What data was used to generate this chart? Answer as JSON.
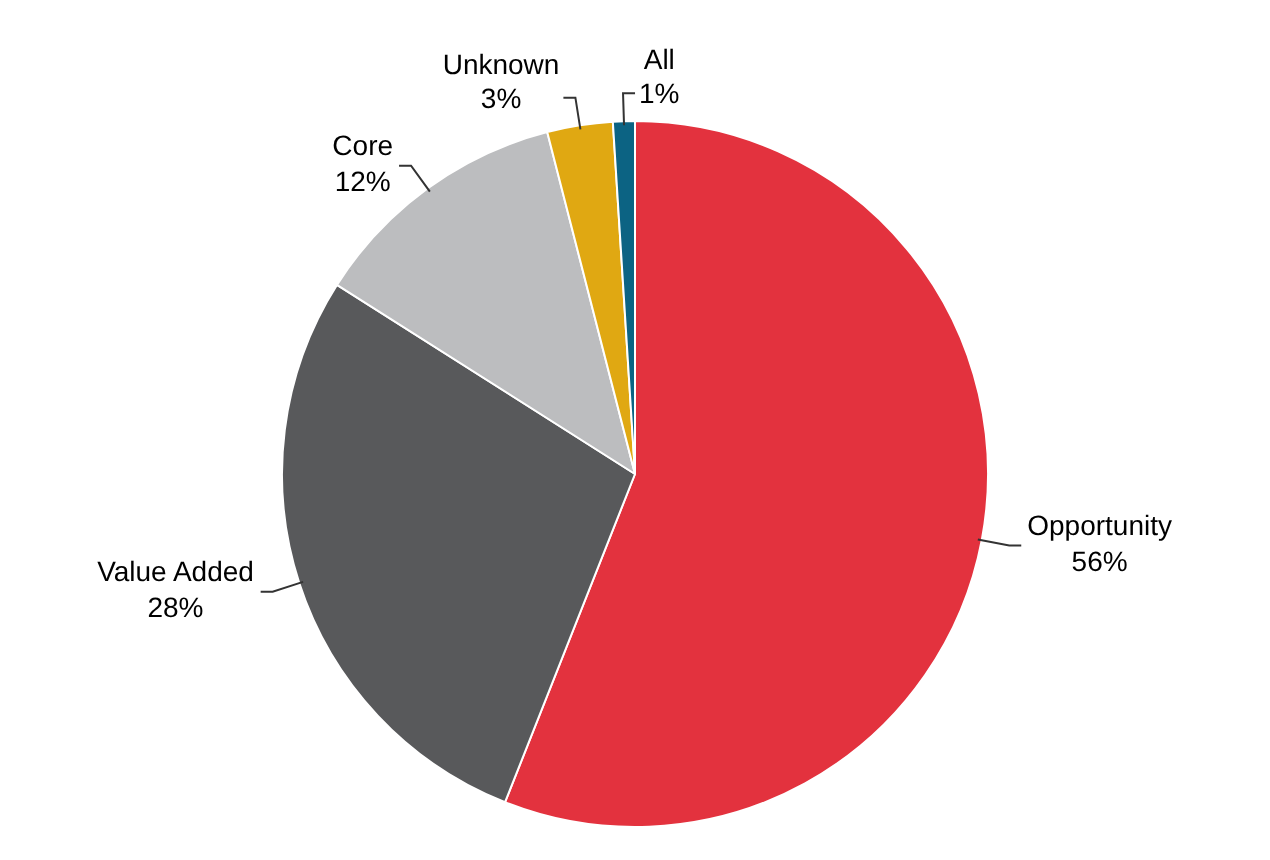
{
  "chart_data": {
    "type": "pie",
    "categories": [
      "Opportunity",
      "Value Added",
      "Core",
      "Unknown",
      "All"
    ],
    "values": [
      56,
      28,
      12,
      3,
      1
    ],
    "colors": [
      "#e3323e",
      "#58595b",
      "#bcbdbf",
      "#e0a812",
      "#0c6383"
    ],
    "value_labels": [
      "56%",
      "28%",
      "12%",
      "3%",
      "1%"
    ],
    "legend": false
  }
}
